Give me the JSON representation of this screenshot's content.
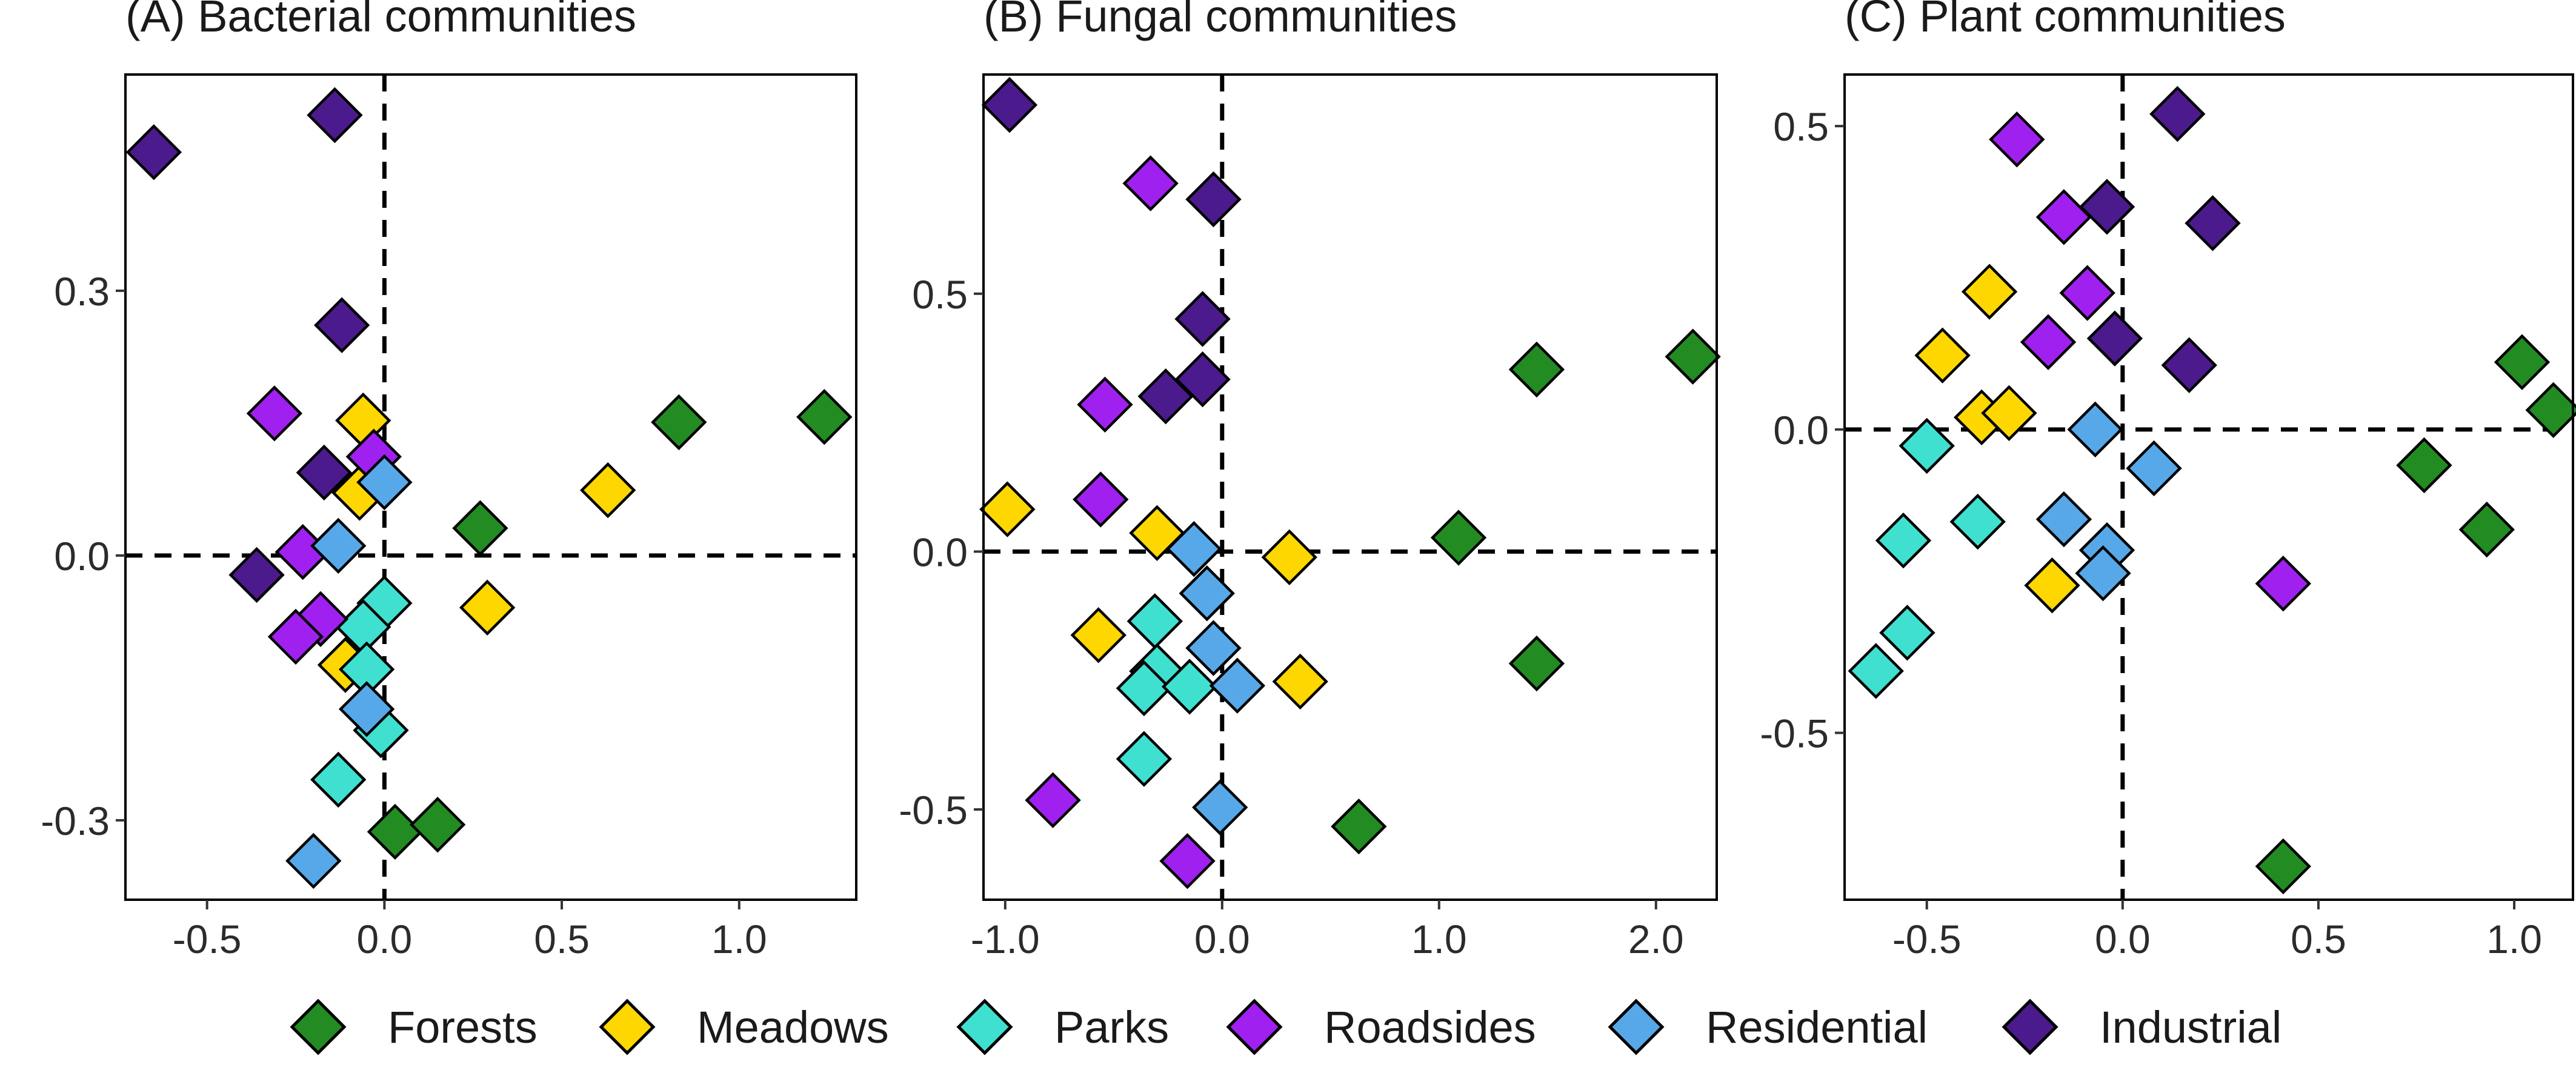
{
  "colors": {
    "Forests": "#228B22",
    "Meadows": "#FFD700",
    "Parks": "#40E0D0",
    "Roadsides": "#A020F0",
    "Residential": "#56A8E8",
    "Industrial": "#4B1A8C"
  },
  "legend": {
    "placement": "bottom",
    "items": [
      "Forests",
      "Meadows",
      "Parks",
      "Roadsides",
      "Residential",
      "Industrial"
    ]
  },
  "chart_data": [
    {
      "type": "scatter",
      "title": "(A) Bacterial communities",
      "xlim": [
        -0.73,
        1.33
      ],
      "ylim": [
        -0.39,
        0.545
      ],
      "xticks": [
        -0.5,
        0.0,
        0.5,
        1.0
      ],
      "xtick_labels": [
        "-0.5",
        "0.0",
        "0.5",
        "1.0"
      ],
      "yticks": [
        -0.3,
        0.0,
        0.3
      ],
      "ytick_labels": [
        "-0.3",
        "0.0",
        "0.3"
      ],
      "reference_lines": {
        "x": 0,
        "y": 0
      },
      "grid": false,
      "series": [
        {
          "name": "Forests",
          "points": [
            [
              1.24,
              0.157
            ],
            [
              0.83,
              0.151
            ],
            [
              0.27,
              0.031
            ],
            [
              0.03,
              -0.313
            ],
            [
              0.15,
              -0.305
            ]
          ]
        },
        {
          "name": "Meadows",
          "points": [
            [
              0.63,
              0.074
            ],
            [
              0.29,
              -0.059
            ],
            [
              -0.06,
              0.153
            ],
            [
              -0.07,
              0.071
            ],
            [
              -0.11,
              -0.124
            ]
          ]
        },
        {
          "name": "Parks",
          "points": [
            [
              0.0,
              -0.054
            ],
            [
              -0.06,
              -0.081
            ],
            [
              -0.05,
              -0.129
            ],
            [
              -0.01,
              -0.198
            ],
            [
              -0.13,
              -0.254
            ]
          ]
        },
        {
          "name": "Roadsides",
          "points": [
            [
              -0.31,
              0.161
            ],
            [
              -0.03,
              0.112
            ],
            [
              -0.23,
              0.004
            ],
            [
              -0.18,
              -0.072
            ],
            [
              -0.25,
              -0.092
            ]
          ]
        },
        {
          "name": "Residential",
          "points": [
            [
              0.0,
              0.083
            ],
            [
              -0.13,
              0.011
            ],
            [
              -0.05,
              -0.174
            ],
            [
              -0.2,
              -0.346
            ]
          ]
        },
        {
          "name": "Industrial",
          "points": [
            [
              -0.65,
              0.457
            ],
            [
              -0.14,
              0.499
            ],
            [
              -0.12,
              0.261
            ],
            [
              -0.17,
              0.094
            ],
            [
              -0.36,
              -0.022
            ]
          ]
        }
      ]
    },
    {
      "type": "scatter",
      "title": "(B) Fungal communities",
      "xlim": [
        -1.1,
        2.28
      ],
      "ylim": [
        -0.675,
        0.925
      ],
      "xticks": [
        -1.0,
        0.0,
        1.0,
        2.0
      ],
      "xtick_labels": [
        "-1.0",
        "0.0",
        "1.0",
        "2.0"
      ],
      "yticks": [
        -0.5,
        0.0,
        0.5
      ],
      "ytick_labels": [
        "-0.5",
        "0.0",
        "0.5"
      ],
      "reference_lines": {
        "x": 0,
        "y": 0
      },
      "grid": false,
      "series": [
        {
          "name": "Forests",
          "points": [
            [
              2.17,
              0.378
            ],
            [
              1.45,
              0.353
            ],
            [
              1.09,
              0.027
            ],
            [
              1.45,
              -0.217
            ],
            [
              0.63,
              -0.533
            ]
          ]
        },
        {
          "name": "Meadows",
          "points": [
            [
              -0.99,
              0.082
            ],
            [
              -0.3,
              0.036
            ],
            [
              0.31,
              -0.011
            ],
            [
              -0.57,
              -0.162
            ],
            [
              0.36,
              -0.252
            ]
          ]
        },
        {
          "name": "Parks",
          "points": [
            [
              -0.31,
              -0.135
            ],
            [
              -0.3,
              -0.232
            ],
            [
              -0.36,
              -0.265
            ],
            [
              -0.15,
              -0.262
            ],
            [
              -0.36,
              -0.402
            ]
          ]
        },
        {
          "name": "Roadsides",
          "points": [
            [
              -0.33,
              0.714
            ],
            [
              -0.54,
              0.285
            ],
            [
              -0.56,
              0.101
            ],
            [
              -0.78,
              -0.482
            ],
            [
              -0.16,
              -0.6
            ]
          ]
        },
        {
          "name": "Residential",
          "points": [
            [
              -0.13,
              0.005
            ],
            [
              -0.07,
              -0.081
            ],
            [
              -0.04,
              -0.187
            ],
            [
              0.07,
              -0.26
            ],
            [
              -0.01,
              -0.496
            ]
          ]
        },
        {
          "name": "Industrial",
          "points": [
            [
              -0.98,
              0.866
            ],
            [
              -0.04,
              0.683
            ],
            [
              -0.09,
              0.451
            ],
            [
              -0.09,
              0.334
            ],
            [
              -0.26,
              0.301
            ]
          ]
        }
      ]
    },
    {
      "type": "scatter",
      "title": "(C) Plant communities",
      "xlim": [
        -0.71,
        1.15
      ],
      "ylim": [
        -0.775,
        0.585
      ],
      "xticks": [
        -0.5,
        0.0,
        0.5,
        1.0
      ],
      "xtick_labels": [
        "-0.5",
        "0.0",
        "0.5",
        "1.0"
      ],
      "yticks": [
        -0.5,
        0.0,
        0.5
      ],
      "ytick_labels": [
        "-0.5",
        "0.0",
        "0.5"
      ],
      "reference_lines": {
        "x": 0,
        "y": 0
      },
      "grid": false,
      "series": [
        {
          "name": "Forests",
          "points": [
            [
              1.02,
              0.111
            ],
            [
              1.1,
              0.032
            ],
            [
              0.77,
              -0.059
            ],
            [
              0.93,
              -0.165
            ],
            [
              0.41,
              -0.72
            ]
          ]
        },
        {
          "name": "Meadows",
          "points": [
            [
              -0.34,
              0.227
            ],
            [
              -0.46,
              0.122
            ],
            [
              -0.36,
              0.02
            ],
            [
              -0.29,
              0.027
            ],
            [
              -0.18,
              -0.257
            ]
          ]
        },
        {
          "name": "Parks",
          "points": [
            [
              -0.5,
              -0.027
            ],
            [
              -0.56,
              -0.183
            ],
            [
              -0.37,
              -0.152
            ],
            [
              -0.55,
              -0.335
            ],
            [
              -0.63,
              -0.398
            ]
          ]
        },
        {
          "name": "Roadsides",
          "points": [
            [
              -0.27,
              0.478
            ],
            [
              -0.15,
              0.35
            ],
            [
              -0.09,
              0.225
            ],
            [
              -0.19,
              0.144
            ],
            [
              0.41,
              -0.254
            ]
          ]
        },
        {
          "name": "Residential",
          "points": [
            [
              -0.07,
              0.0
            ],
            [
              -0.15,
              -0.148
            ],
            [
              0.08,
              -0.064
            ],
            [
              -0.04,
              -0.199
            ],
            [
              -0.05,
              -0.237
            ]
          ]
        },
        {
          "name": "Industrial",
          "points": [
            [
              0.14,
              0.52
            ],
            [
              0.23,
              0.34
            ],
            [
              -0.04,
              0.367
            ],
            [
              -0.02,
              0.15
            ],
            [
              0.17,
              0.106
            ]
          ]
        }
      ]
    }
  ]
}
